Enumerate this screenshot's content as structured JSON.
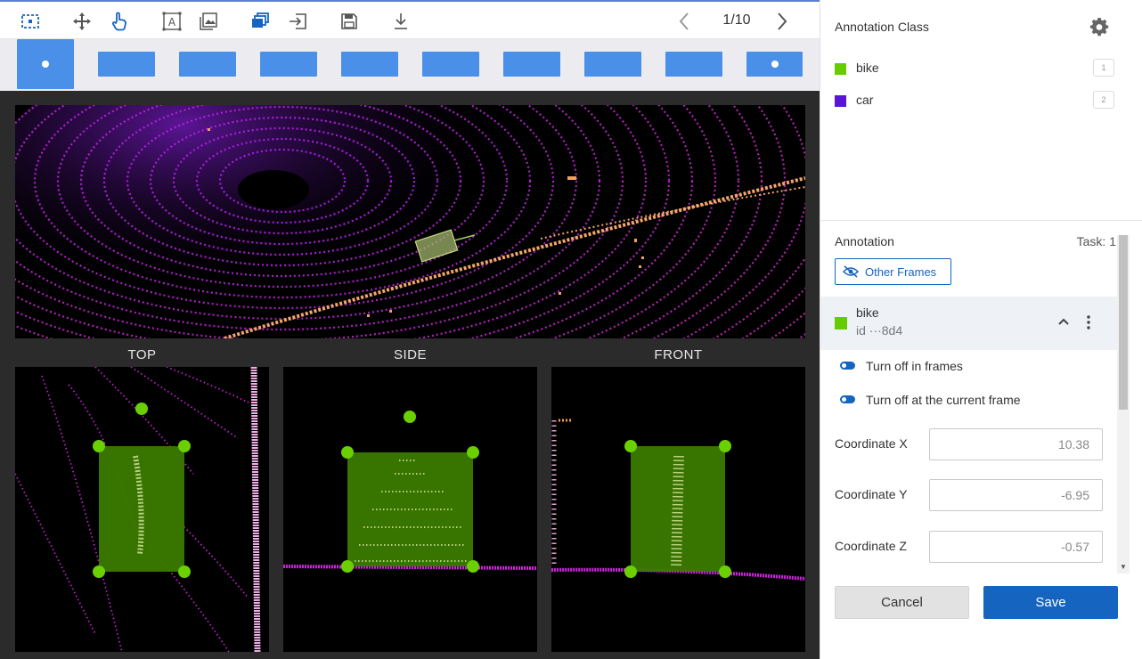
{
  "toolbar": {
    "tools": [
      {
        "icon": "select-box-icon",
        "active": true
      },
      {
        "icon": "move-arrows-icon",
        "active": false
      },
      {
        "icon": "hand-pointer-icon",
        "active": true
      },
      {
        "icon": "text-box-icon",
        "active": false
      },
      {
        "icon": "image-icon",
        "active": false
      },
      {
        "icon": "copy-frames-icon",
        "active": true
      },
      {
        "icon": "import-icon",
        "active": false
      },
      {
        "icon": "save-disk-icon",
        "active": false
      },
      {
        "icon": "download-icon",
        "active": false
      }
    ],
    "pager": "1/10"
  },
  "viewer": {
    "top_label": "TOP",
    "side_label": "SIDE",
    "front_label": "FRONT"
  },
  "panel": {
    "class_title": "Annotation Class",
    "classes": [
      {
        "name": "bike",
        "color": "#66cc00",
        "hotkey": "1"
      },
      {
        "name": "car",
        "color": "#5a16d8",
        "hotkey": "2"
      }
    ],
    "annotation_title": "Annotation",
    "task_label": "Task: 1",
    "other_frames_label": "Other Frames",
    "object": {
      "name": "bike",
      "id": "id ···8d4",
      "color": "#66cc00"
    },
    "toggles": [
      {
        "label": "Turn off in frames"
      },
      {
        "label": "Turn off at the current frame"
      }
    ],
    "coordinates": [
      {
        "label": "Coordinate X",
        "value": "10.38"
      },
      {
        "label": "Coordinate Y",
        "value": "-6.95"
      },
      {
        "label": "Coordinate Z",
        "value": "-0.57"
      }
    ],
    "cancel_label": "Cancel",
    "save_label": "Save"
  },
  "colors": {
    "accent": "#1565c0",
    "frame_blue": "#4a90e8",
    "box_green": "#66cc00",
    "point_magenta": "#d020e0",
    "point_orange": "#f0a060"
  }
}
